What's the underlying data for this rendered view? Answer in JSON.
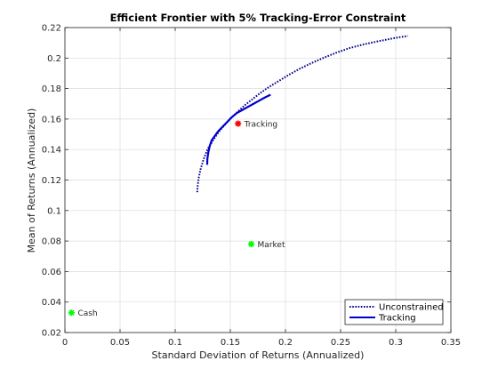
{
  "chart_data": {
    "type": "line",
    "title": "Efficient Frontier with 5% Tracking-Error Constraint",
    "xlabel": "Standard Deviation of Returns (Annualized)",
    "ylabel": "Mean of Returns (Annualized)",
    "xlim": [
      0,
      0.35
    ],
    "ylim": [
      0.02,
      0.22
    ],
    "xticks": [
      0,
      0.05,
      0.1,
      0.15,
      0.2,
      0.25,
      0.3,
      0.35
    ],
    "xtick_labels": [
      "0",
      "0.05",
      "0.1",
      "0.15",
      "0.2",
      "0.25",
      "0.3",
      "0.35"
    ],
    "yticks": [
      0.02,
      0.04,
      0.06,
      0.08,
      0.1,
      0.12,
      0.14,
      0.16,
      0.18,
      0.2,
      0.22
    ],
    "ytick_labels": [
      "0.02",
      "0.04",
      "0.06",
      "0.08",
      "0.1",
      "0.12",
      "0.14",
      "0.16",
      "0.18",
      "0.2",
      "0.22"
    ],
    "grid": true,
    "legend_position": "bottom-right",
    "series": [
      {
        "name": "Unconstrained",
        "style": "dotted",
        "color": "#00008b",
        "x": [
          0.12,
          0.1205,
          0.1215,
          0.123,
          0.125,
          0.1275,
          0.13,
          0.1335,
          0.137,
          0.141,
          0.146,
          0.151,
          0.157,
          0.163,
          0.17,
          0.177,
          0.185,
          0.194,
          0.203,
          0.213,
          0.223,
          0.234,
          0.246,
          0.258,
          0.271,
          0.284,
          0.298,
          0.311
        ],
        "y": [
          0.112,
          0.117,
          0.122,
          0.127,
          0.132,
          0.137,
          0.141,
          0.145,
          0.149,
          0.153,
          0.157,
          0.161,
          0.165,
          0.169,
          0.173,
          0.177,
          0.181,
          0.185,
          0.189,
          0.193,
          0.1965,
          0.2,
          0.2035,
          0.2065,
          0.209,
          0.211,
          0.213,
          0.2145
        ]
      },
      {
        "name": "Tracking",
        "style": "solid",
        "color": "#0000cd",
        "x": [
          0.129,
          0.1292,
          0.13,
          0.1312,
          0.133,
          0.136,
          0.139,
          0.143,
          0.147,
          0.151,
          0.156,
          0.161,
          0.166,
          0.171,
          0.176,
          0.181,
          0.1865
        ],
        "y": [
          0.13,
          0.134,
          0.138,
          0.142,
          0.146,
          0.149,
          0.152,
          0.155,
          0.158,
          0.161,
          0.164,
          0.166,
          0.168,
          0.17,
          0.172,
          0.174,
          0.176
        ]
      }
    ],
    "points": [
      {
        "label": "Tracking",
        "x": 0.157,
        "y": 0.157,
        "color": "#ff0000"
      },
      {
        "label": "Market",
        "x": 0.169,
        "y": 0.078,
        "color": "#00ff00"
      },
      {
        "label": "Cash",
        "x": 0.006,
        "y": 0.033,
        "color": "#00ff00"
      }
    ]
  }
}
